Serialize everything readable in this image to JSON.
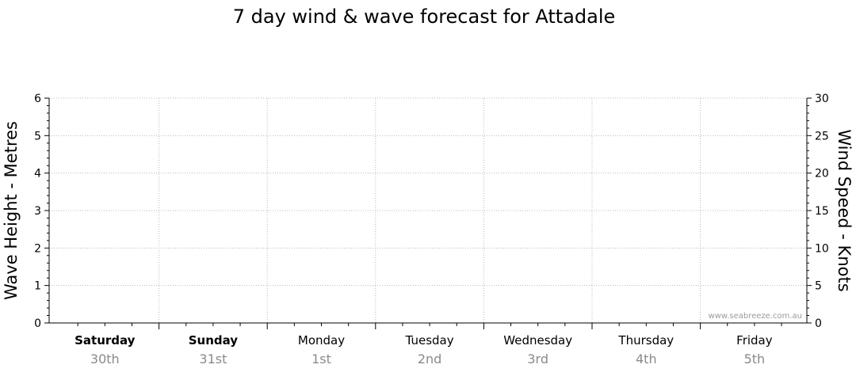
{
  "chart_data": {
    "type": "line",
    "title": "7 day wind & wave forecast for Attadale",
    "y_left": {
      "label": "Wave Height - Metres",
      "range": [
        0,
        6
      ],
      "ticks": [
        "0",
        "1",
        "2",
        "3",
        "4",
        "5",
        "6"
      ]
    },
    "y_right": {
      "label": "Wind Speed - Knots",
      "range": [
        0,
        30
      ],
      "ticks": [
        "0",
        "5",
        "10",
        "15",
        "20",
        "25",
        "30"
      ]
    },
    "grid": true,
    "days": [
      {
        "name": "Saturday",
        "date": "30th",
        "bold": true
      },
      {
        "name": "Sunday",
        "date": "31st",
        "bold": true
      },
      {
        "name": "Monday",
        "date": "1st",
        "bold": false
      },
      {
        "name": "Tuesday",
        "date": "2nd",
        "bold": false
      },
      {
        "name": "Wednesday",
        "date": "3rd",
        "bold": false
      },
      {
        "name": "Thursday",
        "date": "4th",
        "bold": false
      },
      {
        "name": "Friday",
        "date": "5th",
        "bold": false
      }
    ],
    "series": [],
    "watermark": "www.seabreeze.com.au"
  }
}
